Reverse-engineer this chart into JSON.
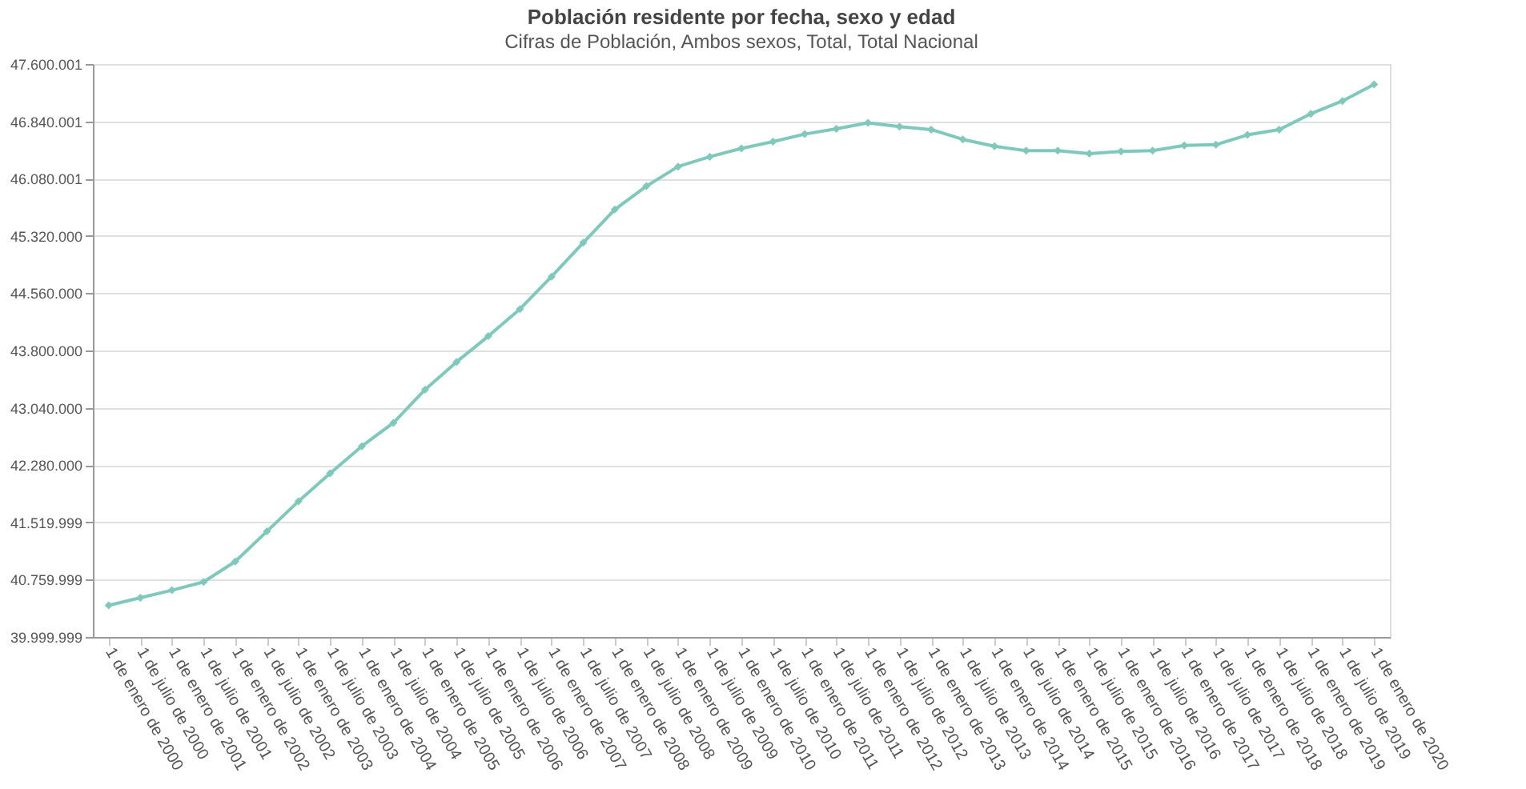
{
  "chart_data": {
    "type": "line",
    "title": "Población residente por fecha, sexo y edad",
    "subtitle": "Cifras de Población, Ambos sexos, Total, Total Nacional",
    "categories": [
      "1 de enero de 2000",
      "1 de julio de 2000",
      "1 de enero de 2001",
      "1 de julio de 2001",
      "1 de enero de 2002",
      "1 de julio de 2002",
      "1 de enero de 2003",
      "1 de julio de 2003",
      "1 de enero de 2004",
      "1 de julio de 2004",
      "1 de enero de 2005",
      "1 de julio de 2005",
      "1 de enero de 2006",
      "1 de julio de 2006",
      "1 de enero de 2007",
      "1 de julio de 2007",
      "1 de enero de 2008",
      "1 de julio de 2008",
      "1 de enero de 2009",
      "1 de julio de 2009",
      "1 de enero de 2010",
      "1 de julio de 2010",
      "1 de enero de 2011",
      "1 de julio de 2011",
      "1 de enero de 2012",
      "1 de julio de 2012",
      "1 de enero de 2013",
      "1 de julio de 2013",
      "1 de enero de 2014",
      "1 de julio de 2014",
      "1 de enero de 2015",
      "1 de julio de 2015",
      "1 de enero de 2016",
      "1 de julio de 2016",
      "1 de enero de 2017",
      "1 de julio de 2017",
      "1 de enero de 2018",
      "1 de julio de 2018",
      "1 de enero de 2019",
      "1 de julio de 2019",
      "1 de enero de 2020"
    ],
    "series": [
      {
        "color": "#7ec8bc",
        "values": [
          40420000,
          40520000,
          40620000,
          40730000,
          41000000,
          41400000,
          41800000,
          42170000,
          42530000,
          42840000,
          43280000,
          43650000,
          43990000,
          44350000,
          44780000,
          45230000,
          45670000,
          45980000,
          46240000,
          46370000,
          46480000,
          46570000,
          46670000,
          46740000,
          46820000,
          46770000,
          46730000,
          46600000,
          46510000,
          46450000,
          46450000,
          46410000,
          46440000,
          46450000,
          46520000,
          46530000,
          46660000,
          46730000,
          46940000,
          47110000,
          47330000
        ]
      }
    ],
    "ylim": [
      39999999,
      47600001
    ],
    "yticks": [
      {
        "value": 39999999,
        "label": "39.999.999"
      },
      {
        "value": 40759999,
        "label": "40.759.999"
      },
      {
        "value": 41519999,
        "label": "41.519.999"
      },
      {
        "value": 42280000,
        "label": "42.280.000"
      },
      {
        "value": 43040000,
        "label": "43.040.000"
      },
      {
        "value": 43800000,
        "label": "43.800.000"
      },
      {
        "value": 44560000,
        "label": "44.560.000"
      },
      {
        "value": 45320000,
        "label": "45.320.000"
      },
      {
        "value": 46080001,
        "label": "46.080.001"
      },
      {
        "value": 46840001,
        "label": "46.840.001"
      },
      {
        "value": 47600001,
        "label": "47.600.001"
      }
    ],
    "grid": "y",
    "marker": "diamond",
    "line_style": "solid",
    "legend": false
  }
}
